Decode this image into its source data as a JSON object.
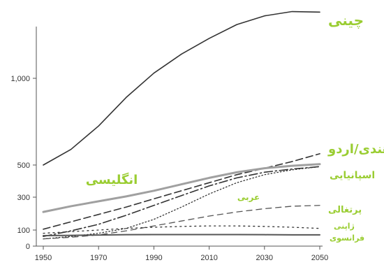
{
  "chart_data": {
    "type": "line",
    "title": "",
    "xlabel": "",
    "ylabel": "",
    "x": [
      1950,
      1960,
      1970,
      1980,
      1990,
      2000,
      2010,
      2020,
      2030,
      2040,
      2050
    ],
    "xticks": [
      "1950",
      "1970",
      "1990",
      "2010",
      "2030",
      "2050"
    ],
    "yticks": [
      "0",
      "100",
      "300",
      "500",
      "1,000"
    ],
    "grid": false,
    "legend": "none",
    "series": [
      {
        "name": "چینی",
        "style": "solid",
        "color": "#333333",
        "width": 1.6,
        "values": [
          500,
          590,
          725,
          890,
          1030,
          1140,
          1230,
          1310,
          1360,
          1385,
          1382
        ]
      },
      {
        "name": "هندی/اردو",
        "style": "dashed",
        "color": "#333333",
        "width": 1.6,
        "values": [
          105,
          150,
          195,
          240,
          290,
          340,
          390,
          440,
          480,
          520,
          565
        ]
      },
      {
        "name": "انگلیسی",
        "style": "solid",
        "color": "#a0a0a0",
        "width": 3,
        "values": [
          210,
          245,
          275,
          305,
          340,
          380,
          420,
          455,
          480,
          495,
          505
        ]
      },
      {
        "name": "اسپانیایی",
        "style": "dashdot",
        "color": "#333333",
        "width": 1.6,
        "values": [
          60,
          95,
          135,
          190,
          250,
          310,
          370,
          420,
          455,
          475,
          490
        ]
      },
      {
        "name": "عربی",
        "style": "dotted",
        "color": "#333333",
        "width": 1.3,
        "values": [
          45,
          60,
          80,
          110,
          165,
          240,
          320,
          390,
          440,
          470,
          490
        ]
      },
      {
        "name": "پرتغالی",
        "style": "dashed-light",
        "color": "#555555",
        "width": 1.3,
        "values": [
          45,
          55,
          70,
          95,
          125,
          155,
          185,
          210,
          230,
          245,
          250
        ]
      },
      {
        "name": "ژاپنی",
        "style": "dotted-sparse",
        "color": "#333333",
        "width": 1.3,
        "values": [
          80,
          90,
          100,
          110,
          117,
          122,
          125,
          125,
          122,
          117,
          110
        ]
      },
      {
        "name": "فرانسوی",
        "style": "solid",
        "color": "#555555",
        "width": 2,
        "values": [
          65,
          67,
          69,
          71,
          72,
          72,
          72,
          72,
          71,
          70,
          70
        ]
      }
    ]
  }
}
